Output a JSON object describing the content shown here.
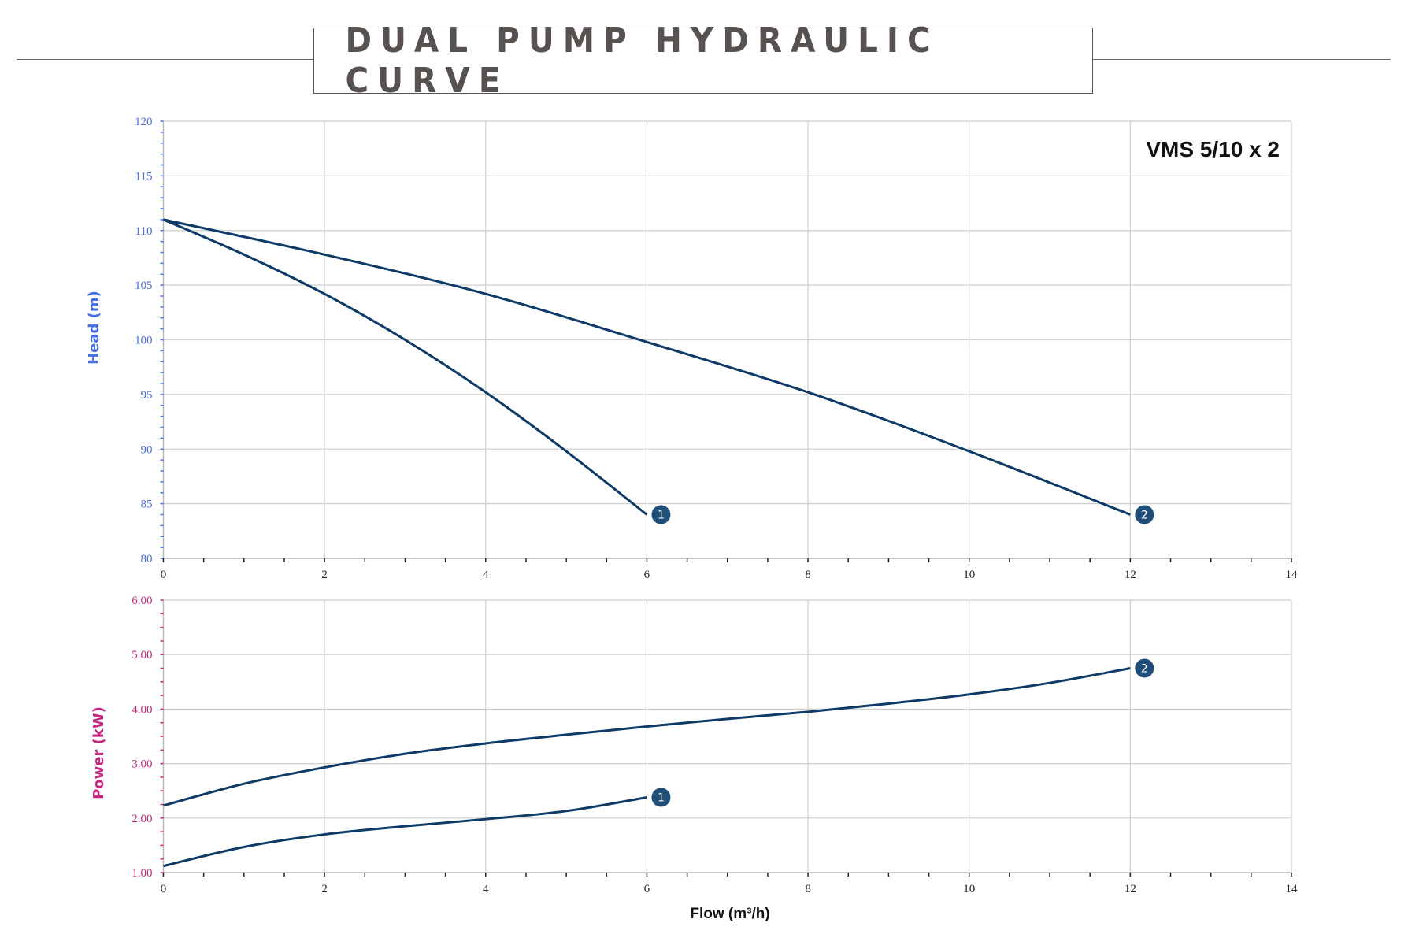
{
  "header": {
    "title": "DUAL PUMP HYDRAULIC CURVE"
  },
  "colors": {
    "line": "#0d3a66",
    "marker": "#1f4e79",
    "head_axis": "#4a6fe0",
    "power_axis": "#c3277f",
    "grid": "#cfcfcf"
  },
  "chart_data": [
    {
      "type": "line",
      "title": "VMS 5/10 x 2",
      "xlabel": "",
      "ylabel": "Head (m)",
      "xlim": [
        0,
        14
      ],
      "ylim": [
        80,
        120
      ],
      "x_ticks": [
        0,
        2,
        4,
        6,
        8,
        10,
        12,
        14
      ],
      "y_ticks": [
        80,
        85,
        90,
        95,
        100,
        105,
        110,
        115,
        120
      ],
      "grid": true,
      "series": [
        {
          "name": "1",
          "x": [
            0,
            1,
            2,
            3,
            4,
            5,
            6
          ],
          "y": [
            111,
            107.8,
            104.2,
            100,
            95.2,
            89.8,
            84
          ]
        },
        {
          "name": "2",
          "x": [
            0,
            2,
            4,
            6,
            8,
            10,
            12
          ],
          "y": [
            111,
            107.8,
            104.2,
            99.8,
            95.2,
            89.8,
            84
          ]
        }
      ]
    },
    {
      "type": "line",
      "xlabel": "Flow (m³/h)",
      "ylabel": "Power (kW)",
      "xlim": [
        0,
        14
      ],
      "ylim": [
        1,
        6
      ],
      "x_ticks": [
        0,
        2,
        4,
        6,
        8,
        10,
        12,
        14
      ],
      "y_ticks": [
        "1.00",
        "2.00",
        "3.00",
        "4.00",
        "5.00",
        "6.00"
      ],
      "grid": true,
      "series": [
        {
          "name": "1",
          "x": [
            0,
            1,
            2,
            3,
            4,
            5,
            6
          ],
          "y": [
            1.12,
            1.47,
            1.7,
            1.85,
            1.98,
            2.13,
            2.38
          ]
        },
        {
          "name": "2",
          "x": [
            0,
            1,
            2,
            3,
            4,
            5,
            6,
            7,
            8,
            9,
            10,
            11,
            12
          ],
          "y": [
            2.23,
            2.63,
            2.93,
            3.18,
            3.37,
            3.53,
            3.68,
            3.82,
            3.95,
            4.1,
            4.27,
            4.48,
            4.75
          ]
        }
      ]
    }
  ]
}
